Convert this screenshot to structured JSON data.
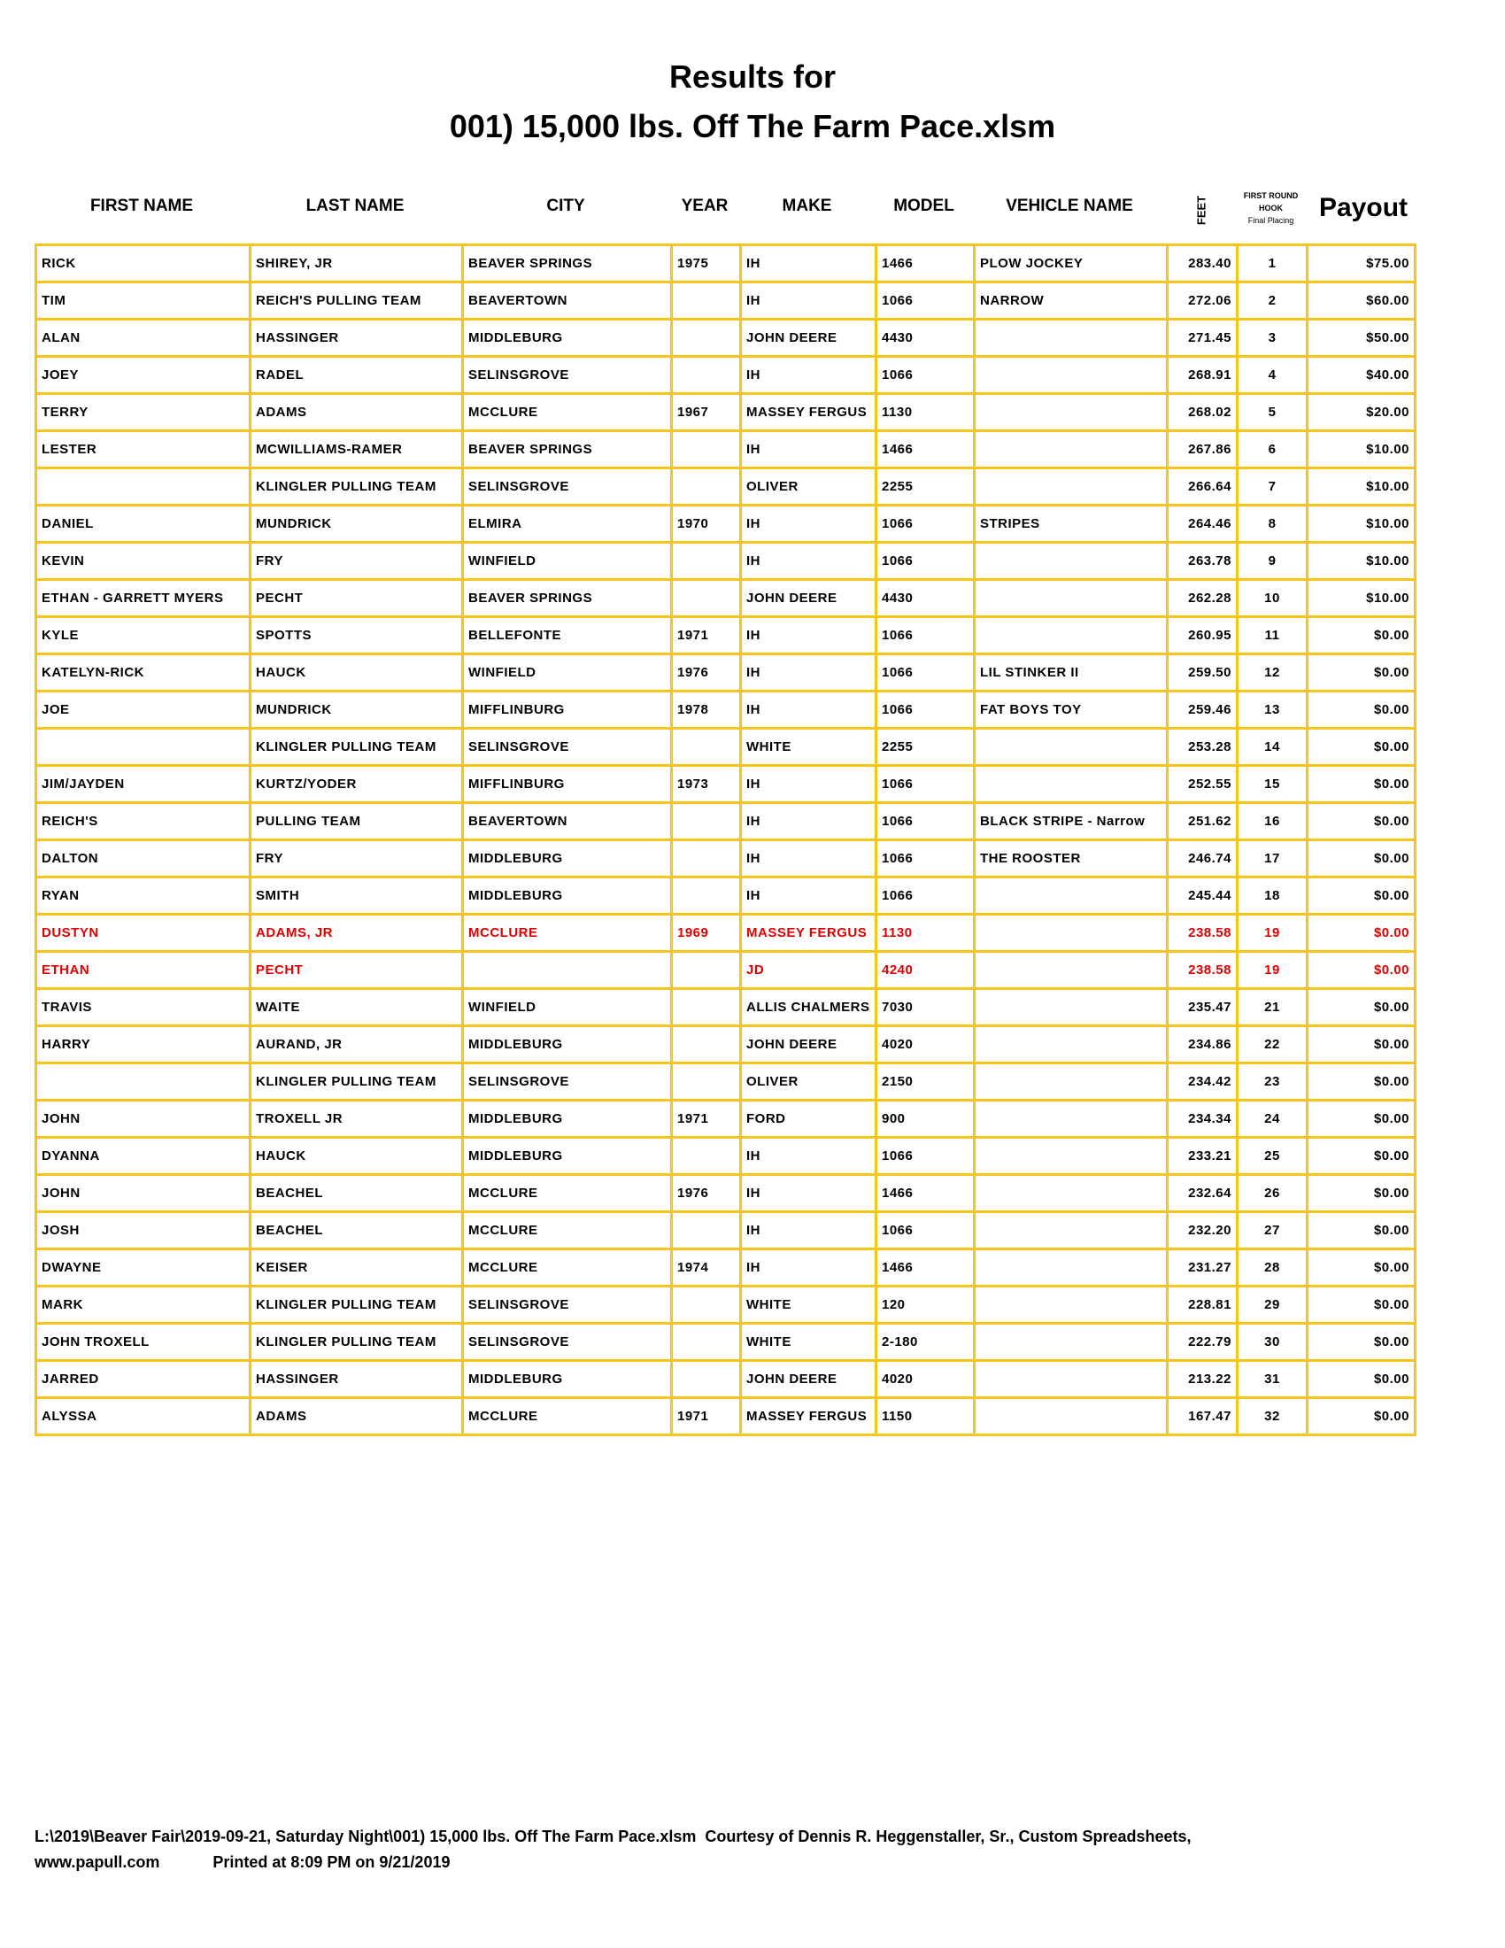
{
  "title_line1": "Results for",
  "title_line2": "001) 15,000 lbs. Off The Farm Pace.xlsm",
  "headers": {
    "first_name": "FIRST NAME",
    "last_name": "LAST NAME",
    "city": "CITY",
    "year": "YEAR",
    "make": "MAKE",
    "model": "MODEL",
    "vehicle_name": "VEHICLE NAME",
    "feet": "FEET",
    "placing_1": "FIRST ROUND",
    "placing_2": "HOOK",
    "placing_3": "Final Placing",
    "payout": "Payout"
  },
  "highlight_color": "#e00000",
  "grid_color": "#f5c518",
  "rows": [
    {
      "first": "RICK",
      "last": "SHIREY, JR",
      "city": "BEAVER SPRINGS",
      "year": "1975",
      "make": "IH",
      "model": "1466",
      "vehicle": "PLOW JOCKEY",
      "feet": "283.40",
      "place": "1",
      "payout": "$75.00",
      "red": false
    },
    {
      "first": "TIM",
      "last": "REICH'S PULLING TEAM",
      "city": "BEAVERTOWN",
      "year": "",
      "make": "IH",
      "model": "1066",
      "vehicle": "NARROW",
      "feet": "272.06",
      "place": "2",
      "payout": "$60.00",
      "red": false
    },
    {
      "first": "ALAN",
      "last": "HASSINGER",
      "city": "MIDDLEBURG",
      "year": "",
      "make": "JOHN DEERE",
      "model": "4430",
      "vehicle": "",
      "feet": "271.45",
      "place": "3",
      "payout": "$50.00",
      "red": false
    },
    {
      "first": "JOEY",
      "last": "RADEL",
      "city": "SELINSGROVE",
      "year": "",
      "make": "IH",
      "model": "1066",
      "vehicle": "",
      "feet": "268.91",
      "place": "4",
      "payout": "$40.00",
      "red": false
    },
    {
      "first": "TERRY",
      "last": "ADAMS",
      "city": "MCCLURE",
      "year": "1967",
      "make": "MASSEY FERGUS",
      "model": "1130",
      "vehicle": "",
      "feet": "268.02",
      "place": "5",
      "payout": "$20.00",
      "red": false
    },
    {
      "first": "LESTER",
      "last": "MCWILLIAMS-RAMER",
      "city": "BEAVER SPRINGS",
      "year": "",
      "make": "IH",
      "model": "1466",
      "vehicle": "",
      "feet": "267.86",
      "place": "6",
      "payout": "$10.00",
      "red": false
    },
    {
      "first": "",
      "last": "KLINGLER PULLING TEAM",
      "city": "SELINSGROVE",
      "year": "",
      "make": "OLIVER",
      "model": "2255",
      "vehicle": "",
      "feet": "266.64",
      "place": "7",
      "payout": "$10.00",
      "red": false
    },
    {
      "first": "DANIEL",
      "last": "MUNDRICK",
      "city": "ELMIRA",
      "year": "1970",
      "make": "IH",
      "model": "1066",
      "vehicle": "STRIPES",
      "feet": "264.46",
      "place": "8",
      "payout": "$10.00",
      "red": false
    },
    {
      "first": "KEVIN",
      "last": "FRY",
      "city": "WINFIELD",
      "year": "",
      "make": "IH",
      "model": "1066",
      "vehicle": "",
      "feet": "263.78",
      "place": "9",
      "payout": "$10.00",
      "red": false
    },
    {
      "first": "ETHAN - GARRETT MYERS",
      "last": "PECHT",
      "city": "BEAVER SPRINGS",
      "year": "",
      "make": "JOHN DEERE",
      "model": "4430",
      "vehicle": "",
      "feet": "262.28",
      "place": "10",
      "payout": "$10.00",
      "red": false
    },
    {
      "first": "KYLE",
      "last": "SPOTTS",
      "city": "BELLEFONTE",
      "year": "1971",
      "make": "IH",
      "model": "1066",
      "vehicle": "",
      "feet": "260.95",
      "place": "11",
      "payout": "$0.00",
      "red": false
    },
    {
      "first": "KATELYN-RICK",
      "last": "HAUCK",
      "city": "WINFIELD",
      "year": "1976",
      "make": "IH",
      "model": "1066",
      "vehicle": "LIL STINKER II",
      "feet": "259.50",
      "place": "12",
      "payout": "$0.00",
      "red": false
    },
    {
      "first": "JOE",
      "last": "MUNDRICK",
      "city": "MIFFLINBURG",
      "year": "1978",
      "make": "IH",
      "model": "1066",
      "vehicle": "FAT BOYS TOY",
      "feet": "259.46",
      "place": "13",
      "payout": "$0.00",
      "red": false
    },
    {
      "first": "",
      "last": "KLINGLER PULLING TEAM",
      "city": "SELINSGROVE",
      "year": "",
      "make": "WHITE",
      "model": "2255",
      "vehicle": "",
      "feet": "253.28",
      "place": "14",
      "payout": "$0.00",
      "red": false
    },
    {
      "first": "JIM/JAYDEN",
      "last": "KURTZ/YODER",
      "city": "MIFFLINBURG",
      "year": "1973",
      "make": "IH",
      "model": "1066",
      "vehicle": "",
      "feet": "252.55",
      "place": "15",
      "payout": "$0.00",
      "red": false
    },
    {
      "first": "REICH'S",
      "last": "PULLING TEAM",
      "city": "BEAVERTOWN",
      "year": "",
      "make": "IH",
      "model": "1066",
      "vehicle": "BLACK STRIPE - Narrow",
      "feet": "251.62",
      "place": "16",
      "payout": "$0.00",
      "red": false
    },
    {
      "first": "DALTON",
      "last": "FRY",
      "city": "MIDDLEBURG",
      "year": "",
      "make": "IH",
      "model": "1066",
      "vehicle": "THE ROOSTER",
      "feet": "246.74",
      "place": "17",
      "payout": "$0.00",
      "red": false
    },
    {
      "first": "RYAN",
      "last": "SMITH",
      "city": "MIDDLEBURG",
      "year": "",
      "make": "IH",
      "model": "1066",
      "vehicle": "",
      "feet": "245.44",
      "place": "18",
      "payout": "$0.00",
      "red": false
    },
    {
      "first": "DUSTYN",
      "last": "ADAMS, JR",
      "city": "MCCLURE",
      "year": "1969",
      "make": "MASSEY FERGUS",
      "model": "1130",
      "vehicle": "",
      "feet": "238.58",
      "place": "19",
      "payout": "$0.00",
      "red": true
    },
    {
      "first": "ETHAN",
      "last": "PECHT",
      "city": "",
      "year": "",
      "make": "JD",
      "model": "4240",
      "vehicle": "",
      "feet": "238.58",
      "place": "19",
      "payout": "$0.00",
      "red": true
    },
    {
      "first": "TRAVIS",
      "last": "WAITE",
      "city": "WINFIELD",
      "year": "",
      "make": "ALLIS CHALMERS",
      "model": "7030",
      "vehicle": "",
      "feet": "235.47",
      "place": "21",
      "payout": "$0.00",
      "red": false
    },
    {
      "first": "HARRY",
      "last": "AURAND, JR",
      "city": "MIDDLEBURG",
      "year": "",
      "make": "JOHN DEERE",
      "model": "4020",
      "vehicle": "",
      "feet": "234.86",
      "place": "22",
      "payout": "$0.00",
      "red": false
    },
    {
      "first": "",
      "last": "KLINGLER PULLING TEAM",
      "city": "SELINSGROVE",
      "year": "",
      "make": "OLIVER",
      "model": "2150",
      "vehicle": "",
      "feet": "234.42",
      "place": "23",
      "payout": "$0.00",
      "red": false
    },
    {
      "first": "JOHN",
      "last": "TROXELL JR",
      "city": "MIDDLEBURG",
      "year": "1971",
      "make": "FORD",
      "model": "900",
      "vehicle": "",
      "feet": "234.34",
      "place": "24",
      "payout": "$0.00",
      "red": false
    },
    {
      "first": "DYANNA",
      "last": "HAUCK",
      "city": "MIDDLEBURG",
      "year": "",
      "make": "IH",
      "model": "1066",
      "vehicle": "",
      "feet": "233.21",
      "place": "25",
      "payout": "$0.00",
      "red": false
    },
    {
      "first": "JOHN",
      "last": "BEACHEL",
      "city": "MCCLURE",
      "year": "1976",
      "make": "IH",
      "model": "1466",
      "vehicle": "",
      "feet": "232.64",
      "place": "26",
      "payout": "$0.00",
      "red": false
    },
    {
      "first": "JOSH",
      "last": "BEACHEL",
      "city": "MCCLURE",
      "year": "",
      "make": "IH",
      "model": "1066",
      "vehicle": "",
      "feet": "232.20",
      "place": "27",
      "payout": "$0.00",
      "red": false
    },
    {
      "first": "DWAYNE",
      "last": "KEISER",
      "city": "MCCLURE",
      "year": "1974",
      "make": "IH",
      "model": "1466",
      "vehicle": "",
      "feet": "231.27",
      "place": "28",
      "payout": "$0.00",
      "red": false
    },
    {
      "first": "MARK",
      "last": "KLINGLER PULLING TEAM",
      "city": "SELINSGROVE",
      "year": "",
      "make": "WHITE",
      "model": "120",
      "vehicle": "",
      "feet": "228.81",
      "place": "29",
      "payout": "$0.00",
      "red": false
    },
    {
      "first": "JOHN TROXELL",
      "last": "KLINGLER PULLING TEAM",
      "city": "SELINSGROVE",
      "year": "",
      "make": "WHITE",
      "model": "2-180",
      "vehicle": "",
      "feet": "222.79",
      "place": "30",
      "payout": "$0.00",
      "red": false
    },
    {
      "first": "JARRED",
      "last": "HASSINGER",
      "city": "MIDDLEBURG",
      "year": "",
      "make": "JOHN DEERE",
      "model": "4020",
      "vehicle": "",
      "feet": "213.22",
      "place": "31",
      "payout": "$0.00",
      "red": false
    },
    {
      "first": "ALYSSA",
      "last": "ADAMS",
      "city": "MCCLURE",
      "year": "1971",
      "make": "MASSEY FERGUS",
      "model": "1150",
      "vehicle": "",
      "feet": "167.47",
      "place": "32",
      "payout": "$0.00",
      "red": false
    }
  ],
  "footer": {
    "line1": "L:\\2019\\Beaver Fair\\2019-09-21, Saturday Night\\001) 15,000 lbs. Off The Farm Pace.xlsm  Courtesy of Dennis R. Heggenstaller, Sr., Custom Spreadsheets,",
    "website": "www.papull.com",
    "printed": "Printed at 8:09 PM on 9/21/2019"
  }
}
